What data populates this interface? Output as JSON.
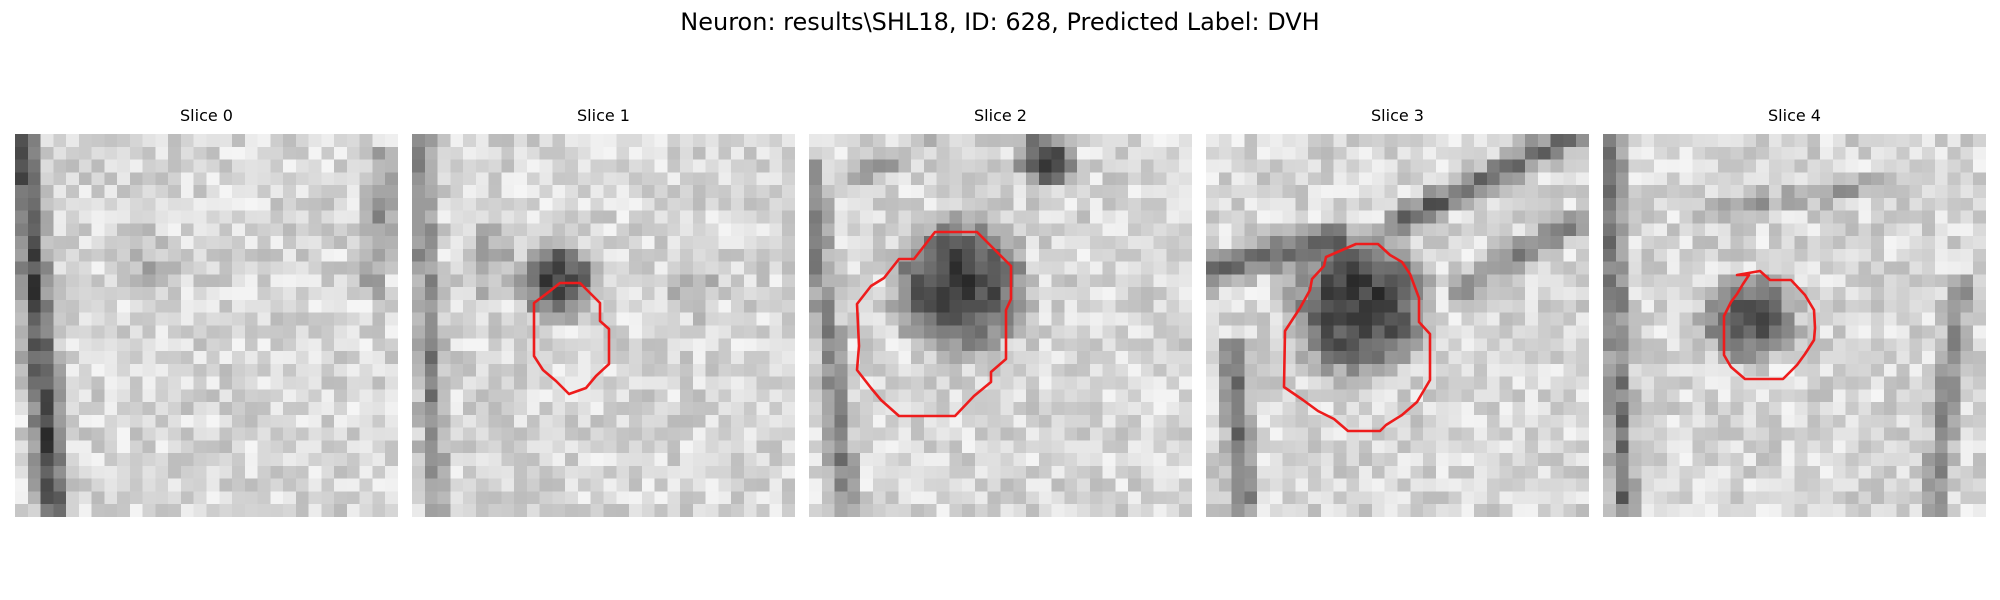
{
  "figure": {
    "title": "Neuron: results\\SHL18, ID: 628, Predicted Label: DVH"
  },
  "style": {
    "contour_color": "#ee1c1c"
  },
  "panels": [
    {
      "title": "Slice 0",
      "has_contour": false
    },
    {
      "title": "Slice 1",
      "has_contour": true
    },
    {
      "title": "Slice 2",
      "has_contour": true
    },
    {
      "title": "Slice 3",
      "has_contour": true
    },
    {
      "title": "Slice 4",
      "has_contour": true
    }
  ]
}
